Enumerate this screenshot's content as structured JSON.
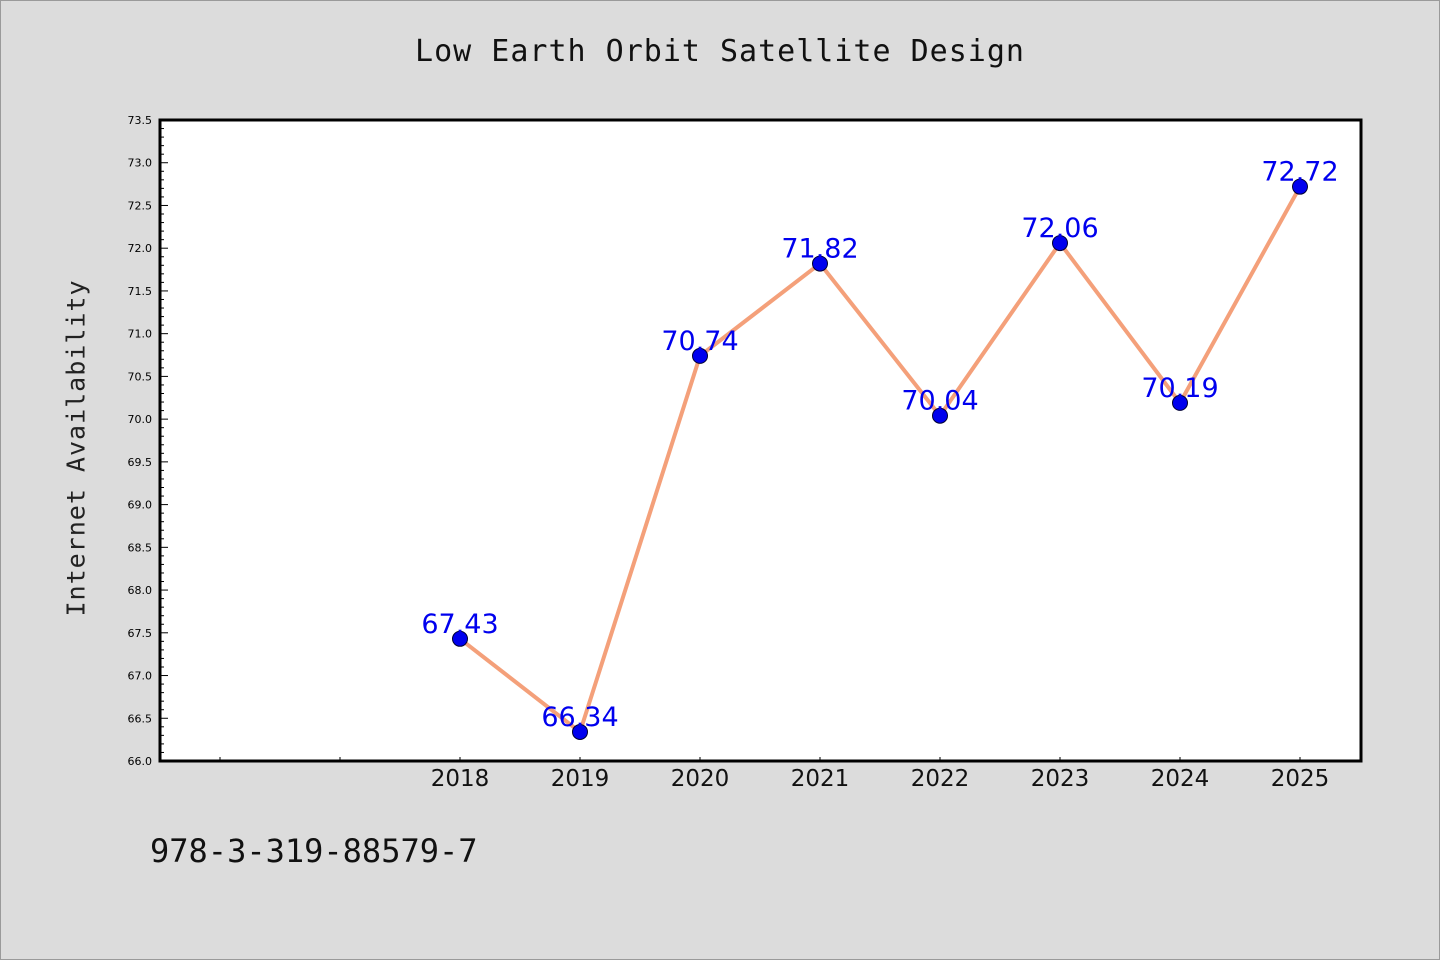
{
  "chart_data": {
    "type": "line",
    "title": "Low Earth Orbit Satellite Design",
    "xlabel": "",
    "ylabel": "Internet Availability",
    "categories": [
      "2018",
      "2019",
      "2020",
      "2021",
      "2022",
      "2023",
      "2024",
      "2025"
    ],
    "series": [
      {
        "values": [
          67.43,
          66.34,
          70.74,
          71.82,
          70.04,
          72.06,
          70.19,
          72.72
        ],
        "data_labels": [
          "67.43",
          "66.34",
          "70.74",
          "71.82",
          "70.04",
          "72.06",
          "70.19",
          "72.72"
        ],
        "line_color": "#f4a07a",
        "marker_color": "#0000ee",
        "label_color": "#0000ee"
      }
    ],
    "ylim": [
      66.0,
      73.5
    ],
    "yticks": [
      "66.0",
      "66.5",
      "67.0",
      "67.5",
      "68.0",
      "68.5",
      "69.0",
      "69.5",
      "70.0",
      "70.5",
      "71.0",
      "71.5",
      "72.0",
      "72.5",
      "73.0",
      "73.5"
    ],
    "grid": false,
    "legend": "none"
  },
  "footnote": "978-3-319-88579-7"
}
